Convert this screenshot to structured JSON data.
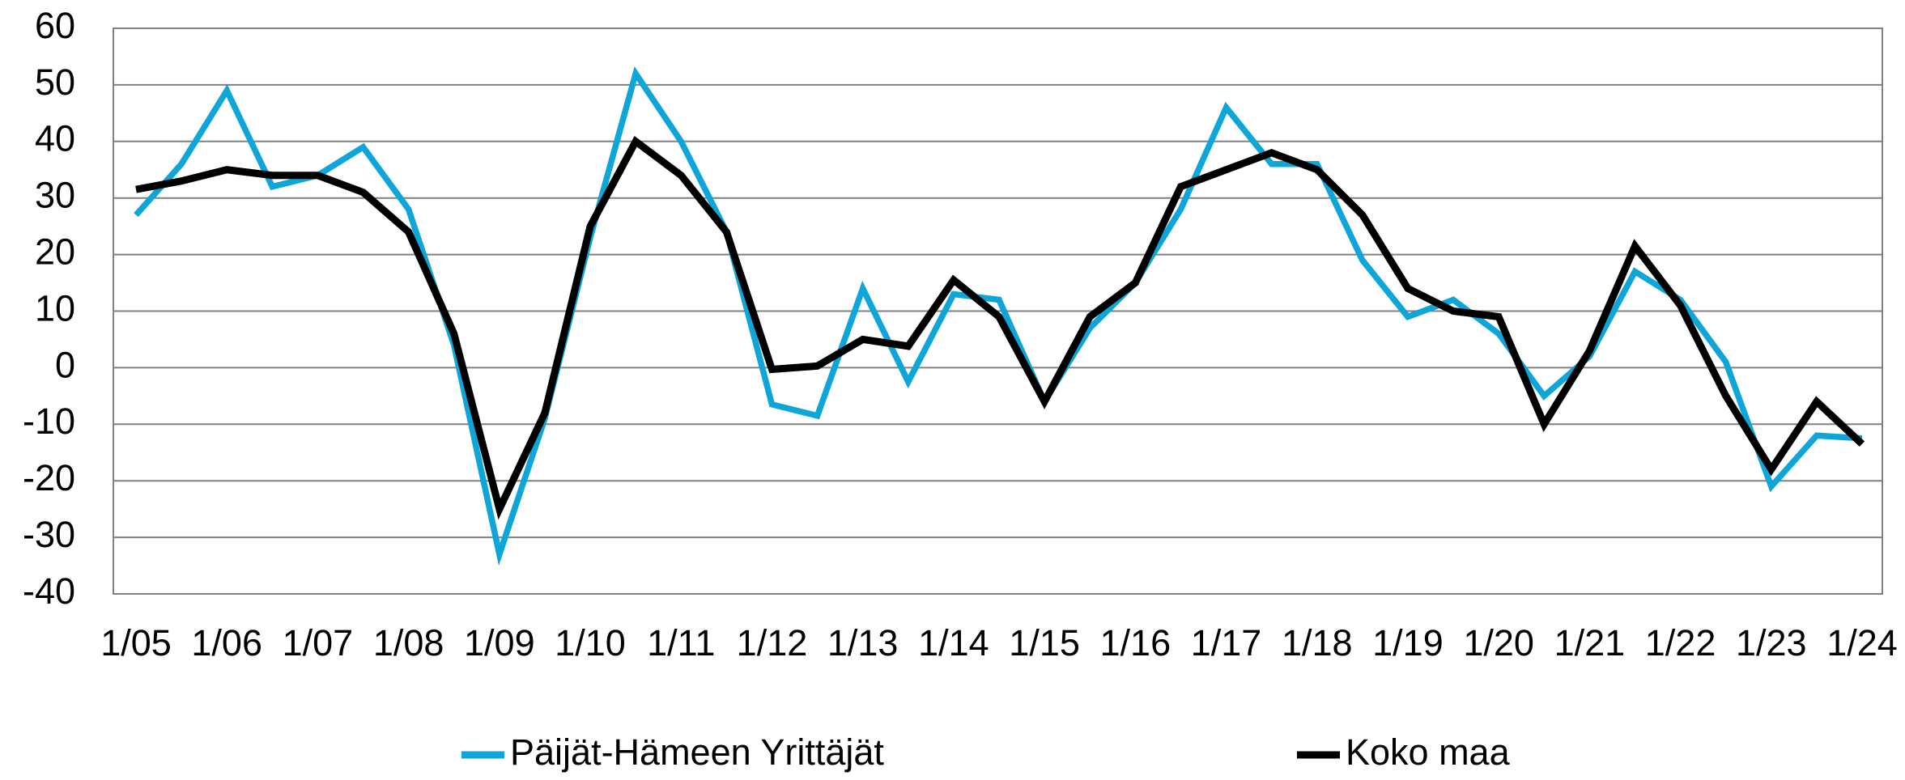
{
  "chart_data": {
    "type": "line",
    "categories": [
      "1/05",
      null,
      "1/06",
      null,
      "1/07",
      null,
      "1/08",
      null,
      "1/09",
      null,
      "1/10",
      null,
      "1/11",
      null,
      "1/12",
      null,
      "1/13",
      null,
      "1/14",
      null,
      "1/15",
      null,
      "1/16",
      null,
      "1/17",
      null,
      "1/18",
      null,
      "1/19",
      null,
      "1/20",
      null,
      "1/21",
      null,
      "1/22",
      null,
      "1/23",
      null,
      "1/24"
    ],
    "series": [
      {
        "name": "Päijät-Hämeen Yrittäjät",
        "color": "#0ea5d8",
        "values": [
          27,
          36,
          49,
          32,
          34,
          39,
          28,
          4,
          -33,
          -9,
          23,
          52,
          40,
          24,
          -6.5,
          -8.5,
          14,
          -2.5,
          13,
          12,
          -6,
          7,
          15,
          28,
          46,
          36,
          36,
          19,
          9,
          12,
          6,
          -5,
          2,
          17,
          12,
          1,
          -21,
          -12,
          -12.5
        ]
      },
      {
        "name": "Koko maa",
        "color": "#000000",
        "values": [
          31.5,
          33,
          35,
          34,
          34,
          31,
          24,
          6,
          -25,
          -8,
          25,
          40,
          34,
          24,
          -0.3,
          0.3,
          5,
          3.8,
          15.5,
          9,
          -6,
          9,
          15,
          32,
          35,
          38,
          35,
          27,
          14,
          10,
          9,
          -10,
          3,
          21.5,
          11,
          -5,
          -18,
          -6,
          -13.5
        ]
      }
    ],
    "ylim": [
      -40,
      60
    ],
    "yticks": [
      -40,
      -30,
      -20,
      -10,
      0,
      10,
      20,
      30,
      40,
      50,
      60
    ],
    "grid": true,
    "legend": "bottom"
  }
}
